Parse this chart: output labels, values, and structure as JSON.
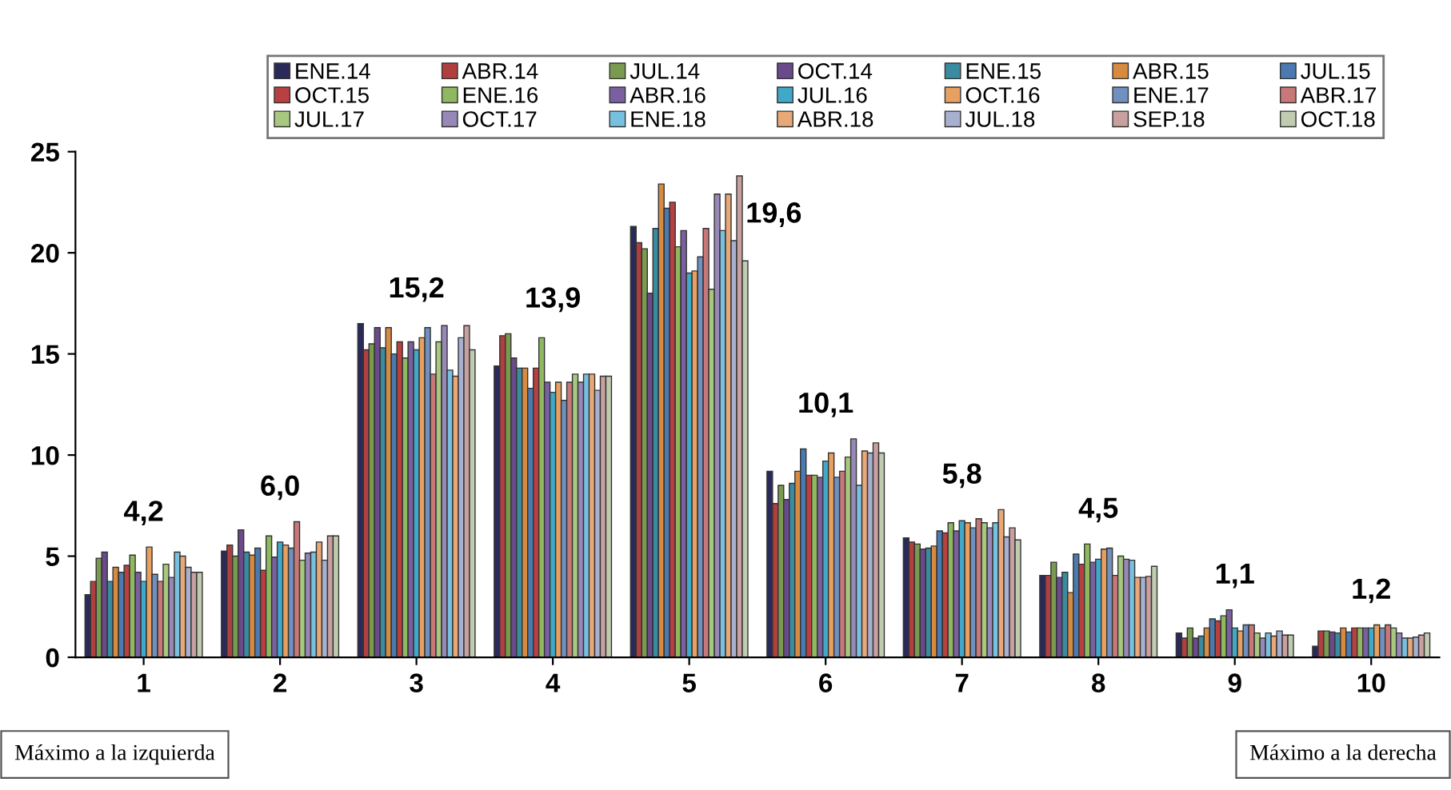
{
  "chart_data": {
    "type": "bar",
    "categories": [
      "1",
      "2",
      "3",
      "4",
      "5",
      "6",
      "7",
      "8",
      "9",
      "10"
    ],
    "ylim": [
      0,
      25
    ],
    "yticks": [
      0,
      5,
      10,
      15,
      20,
      25
    ],
    "grid": false,
    "legend": "top",
    "series": [
      {
        "name": "ENE.14",
        "color": "#2a2a5a",
        "values": [
          3.1,
          5.25,
          16.5,
          14.4,
          21.3,
          9.2,
          5.9,
          4.05,
          1.2,
          0.55
        ]
      },
      {
        "name": "ABR.14",
        "color": "#b04040",
        "values": [
          3.75,
          5.55,
          15.2,
          15.9,
          20.5,
          7.6,
          5.7,
          4.05,
          0.95,
          1.3
        ]
      },
      {
        "name": "JUL.14",
        "color": "#7a9a50",
        "values": [
          4.9,
          5.0,
          15.5,
          16.0,
          20.2,
          8.5,
          5.6,
          4.7,
          1.45,
          1.3
        ]
      },
      {
        "name": "OCT.14",
        "color": "#6a4a8a",
        "values": [
          5.2,
          6.3,
          16.3,
          14.8,
          18.0,
          7.8,
          5.35,
          3.95,
          0.95,
          1.25
        ]
      },
      {
        "name": "ENE.15",
        "color": "#3a8aa0",
        "values": [
          3.75,
          5.2,
          15.3,
          14.3,
          21.2,
          8.6,
          5.4,
          4.2,
          1.05,
          1.2
        ]
      },
      {
        "name": "ABR.15",
        "color": "#d88a40",
        "values": [
          4.45,
          5.05,
          16.3,
          14.3,
          23.4,
          9.2,
          5.5,
          3.2,
          1.45,
          1.45
        ]
      },
      {
        "name": "JUL.15",
        "color": "#4a7ab0",
        "values": [
          4.2,
          5.4,
          15.0,
          13.3,
          22.2,
          10.3,
          6.25,
          5.1,
          1.9,
          1.25
        ]
      },
      {
        "name": "OCT.15",
        "color": "#b84040",
        "values": [
          4.55,
          4.3,
          15.6,
          14.3,
          22.5,
          9.0,
          6.15,
          4.6,
          1.8,
          1.45
        ]
      },
      {
        "name": "ENE.16",
        "color": "#90b860",
        "values": [
          5.05,
          6.0,
          14.8,
          15.8,
          20.3,
          9.0,
          6.65,
          5.6,
          2.05,
          1.45
        ]
      },
      {
        "name": "ABR.16",
        "color": "#7a60a0",
        "values": [
          4.2,
          4.95,
          15.6,
          13.6,
          21.1,
          8.9,
          6.25,
          4.7,
          2.35,
          1.45
        ]
      },
      {
        "name": "JUL.16",
        "color": "#40a8c8",
        "values": [
          3.75,
          5.7,
          15.2,
          13.1,
          19.0,
          9.7,
          6.75,
          4.85,
          1.45,
          1.45
        ]
      },
      {
        "name": "OCT.16",
        "color": "#e8a060",
        "values": [
          5.45,
          5.55,
          15.8,
          13.6,
          19.1,
          10.1,
          6.65,
          5.35,
          1.3,
          1.6
        ]
      },
      {
        "name": "ENE.17",
        "color": "#7090c0",
        "values": [
          4.1,
          5.4,
          16.3,
          12.7,
          19.8,
          8.9,
          6.4,
          5.4,
          1.6,
          1.45
        ]
      },
      {
        "name": "ABR.17",
        "color": "#c87878",
        "values": [
          3.75,
          6.7,
          14.0,
          13.6,
          21.2,
          9.2,
          6.85,
          4.05,
          1.6,
          1.6
        ]
      },
      {
        "name": "JUL.17",
        "color": "#a8c880",
        "values": [
          4.6,
          4.8,
          15.6,
          14.0,
          18.2,
          9.9,
          6.65,
          5.0,
          1.2,
          1.45
        ]
      },
      {
        "name": "OCT.17",
        "color": "#9888b8",
        "values": [
          3.95,
          5.15,
          16.4,
          13.6,
          22.9,
          10.8,
          6.4,
          4.85,
          0.95,
          1.2
        ]
      },
      {
        "name": "ENE.18",
        "color": "#78c0e0",
        "values": [
          5.2,
          5.2,
          14.2,
          14.0,
          21.1,
          8.5,
          6.65,
          4.8,
          1.2,
          0.95
        ]
      },
      {
        "name": "ABR.18",
        "color": "#e8a878",
        "values": [
          5.0,
          5.7,
          13.9,
          14.0,
          22.9,
          10.2,
          7.3,
          3.95,
          1.05,
          0.95
        ]
      },
      {
        "name": "JUL.18",
        "color": "#a8b0d0",
        "values": [
          4.45,
          4.8,
          15.8,
          13.2,
          20.6,
          10.1,
          5.95,
          3.95,
          1.3,
          1.0
        ]
      },
      {
        "name": "SEP.18",
        "color": "#c8a0a0",
        "values": [
          4.2,
          6.0,
          16.4,
          13.9,
          23.8,
          10.6,
          6.4,
          4.0,
          1.1,
          1.1
        ]
      },
      {
        "name": "OCT.18",
        "color": "#c0ccb0",
        "values": [
          4.2,
          6.0,
          15.2,
          13.9,
          19.6,
          10.1,
          5.8,
          4.5,
          1.1,
          1.2
        ]
      }
    ],
    "annotations": [
      "4,2",
      "6,0",
      "15,2",
      "13,9",
      "19,6",
      "10,1",
      "5,8",
      "4,5",
      "1,1",
      "1,2",
      "Máximo a la izquierda",
      "Máximo a la derecha"
    ]
  }
}
